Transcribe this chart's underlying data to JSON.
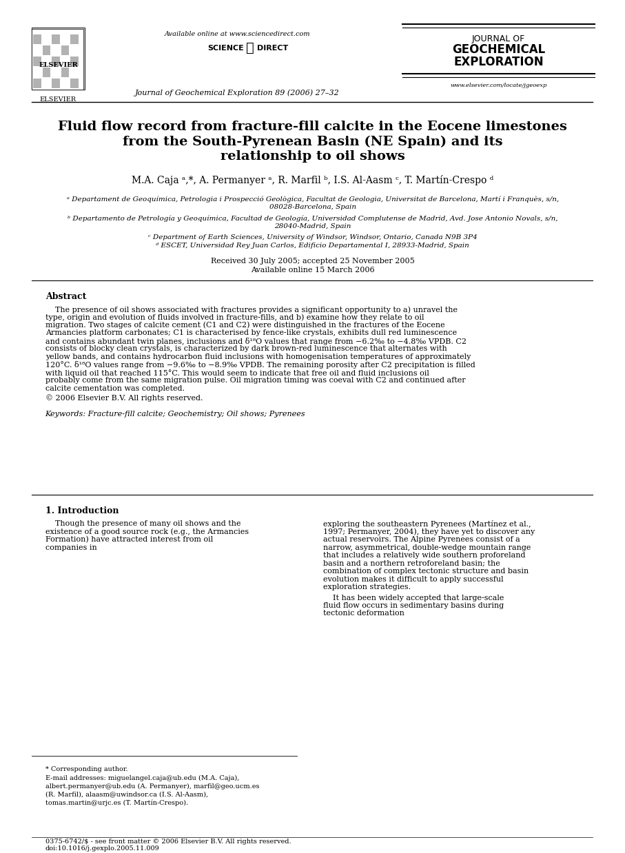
{
  "bg_color": "#ffffff",
  "title_line1": "Fluid flow record from fracture-fill calcite in the Eocene limestones",
  "title_line2": "from the South-Pyrenean Basin (NE Spain) and its",
  "title_line3": "relationship to oil shows",
  "authors": "M.A. Caja ᵃ,*, A. Permanyer ᵃ, R. Marfil ᵇ, I.S. Al-Aasm ᶜ, T. Martín-Crespo ᵈ",
  "affil_a": "ᵃ Departament de Geoquímica, Petrologia i Prospecció Geològica, Facultat de Geologia, Universitat de Barcelona, Martí i Franquès, s/n,",
  "affil_a2": "08028-Barcelona, Spain",
  "affil_b": "ᵇ Departamento de Petrología y Geoquímica, Facultad de Geología, Universidad Complutense de Madrid, Avd. Jose Antonio Novals, s/n,",
  "affil_b2": "28040-Madrid, Spain",
  "affil_c": "ᶜ Department of Earth Sciences, University of Windsor, Windsor, Ontario, Canada N9B 3P4",
  "affil_d": "ᵈ ESCET, Universidad Rey Juan Carlos, Edificio Departamental I, 28933-Madrid, Spain",
  "received": "Received 30 July 2005; accepted 25 November 2005",
  "available": "Available online 15 March 2006",
  "abstract_title": "Abstract",
  "abstract_text": "    The presence of oil shows associated with fractures provides a significant opportunity to a) unravel the type, origin and evolution of fluids involved in fracture-fills, and b) examine how they relate to oil migration. Two stages of calcite cement (C1 and C2) were distinguished in the fractures of the Eocene Armancies platform carbonates; C1 is characterised by fence-like crystals, exhibits dull red luminescence and contains abundant twin planes, inclusions and δ¹⁸O values that range from −6.2‰ to −4.8‰ VPDB. C2 consists of blocky clean crystals, is characterized by dark brown-red luminescence that alternates with yellow bands, and contains hydrocarbon fluid inclusions with homogenisation temperatures of approximately 120°C. δ¹⁸O values range from −9.6‰ to −8.9‰ VPDB. The remaining porosity after C2 precipitation is filled with liquid oil that reached 115°C. This would seem to indicate that free oil and fluid inclusions oil probably come from the same migration pulse. Oil migration timing was coeval with C2 and continued after calcite cementation was completed.",
  "copyright": "© 2006 Elsevier B.V. All rights reserved.",
  "keywords_label": "Keywords:",
  "keywords": "Fracture-fill calcite; Geochemistry; Oil shows; Pyrenees",
  "section1_title": "1. Introduction",
  "section1_col1": "    Though the presence of many oil shows and the existence of a good source rock (e.g., the Armancies Formation) have attracted interest from oil companies in",
  "section1_col2": "exploring the southeastern Pyrenees (Martínez et al., 1997; Permanyer, 2004), they have yet to discover any actual reservoirs. The Alpine Pyrenees consist of a narrow, asymmetrical, double-wedge mountain range that includes a relatively wide southern proforeland basin and a northern retroforeland basin; the combination of complex tectonic structure and basin evolution makes it difficult to apply successful exploration strategies.\n    It has been widely accepted that large-scale fluid flow occurs in sedimentary basins during tectonic deformation",
  "footer1": "* Corresponding author.",
  "footer2": "E-mail addresses: miguelangel.caja@ub.edu (M.A. Caja),",
  "footer3": "albert.permanyer@ub.edu (A. Permanyer), marfil@geo.ucm.es",
  "footer4": "(R. Marfil), alaasm@uwindsor.ca (I.S. Al-Aasm),",
  "footer5": "tomas.martin@urjc.es (T. Martín-Crespo).",
  "footer_journal": "0375-6742/$ - see front matter © 2006 Elsevier B.V. All rights reserved.",
  "footer_doi": "doi:10.1016/j.gexplo.2005.11.009",
  "header_avail": "Available online at www.sciencedirect.com",
  "header_journal_line1": "JOURNAL OF",
  "header_journal_line2": "GEOCHEMICAL",
  "header_journal_line3": "EXPLORATION",
  "header_journal_sub": "www.elsevier.com/locate/jgeoexp",
  "journal_ref": "Journal of Geochemical Exploration 89 (2006) 27–32"
}
